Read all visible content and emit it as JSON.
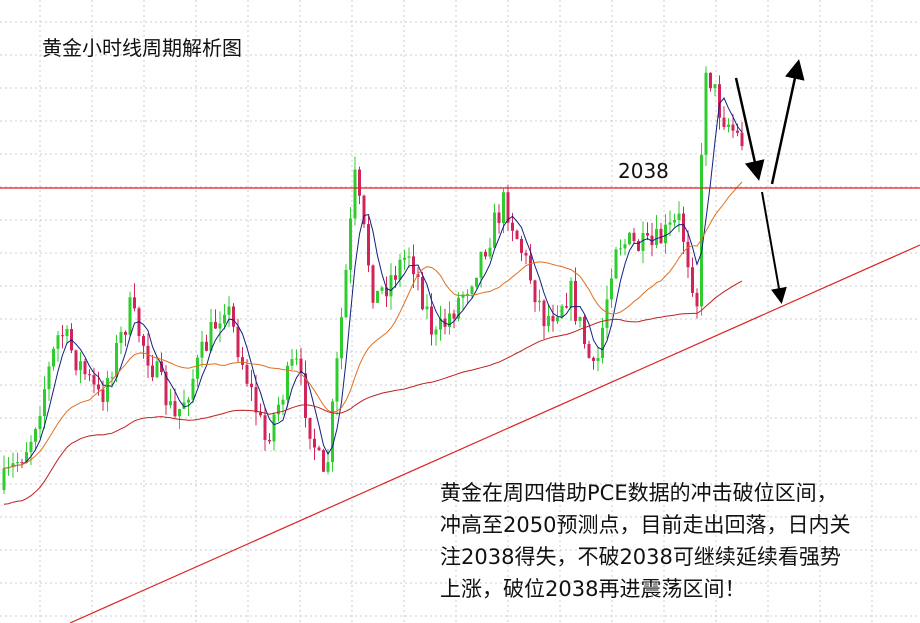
{
  "header": {
    "title": "黄金小时线周期解析图"
  },
  "level": {
    "label": "2038"
  },
  "annotation": {
    "lines": [
      "黄金在周四借助PCE数据的冲击破位区间，",
      "冲高至2050预测点，目前走出回落，日内关",
      "注2038得失，不破2038可继续延续看强势",
      "上涨，破位2038再进震荡区间！"
    ]
  }
}
